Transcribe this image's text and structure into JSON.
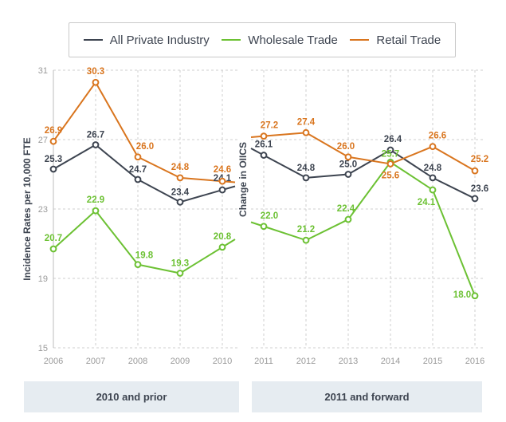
{
  "legend": [
    {
      "label": "All Private Industry",
      "color": "#3d4450"
    },
    {
      "label": "Wholesale Trade",
      "color": "#6cc133"
    },
    {
      "label": "Retail Trade",
      "color": "#d9751e"
    }
  ],
  "footer": {
    "left_label": "2010 and prior",
    "right_label": "2011 and forward"
  },
  "chart_data": {
    "type": "line",
    "ylabel_left": "Incidence Rates per 10,000 FTE",
    "ylabel_right": "Change in OIICS",
    "ylim": [
      15,
      31
    ],
    "yticks": [
      15,
      19,
      23,
      27,
      31
    ],
    "grid": true,
    "legend_placement": "top",
    "panels": [
      {
        "name": "2010 and prior",
        "x": [
          "2006",
          "2007",
          "2008",
          "2009",
          "2010"
        ],
        "series": [
          {
            "name": "All Private Industry",
            "values": [
              25.3,
              26.7,
              24.7,
              23.4,
              24.1
            ]
          },
          {
            "name": "Wholesale Trade",
            "values": [
              20.7,
              22.9,
              19.8,
              19.3,
              20.8
            ]
          },
          {
            "name": "Retail Trade",
            "values": [
              26.9,
              30.3,
              26.0,
              24.8,
              24.6
            ]
          }
        ]
      },
      {
        "name": "2011 and forward",
        "x": [
          "2011",
          "2012",
          "2013",
          "2014",
          "2015",
          "2016"
        ],
        "series": [
          {
            "name": "All Private Industry",
            "values": [
              26.1,
              24.8,
              25.0,
              26.4,
              24.8,
              23.6
            ]
          },
          {
            "name": "Wholesale Trade",
            "values": [
              22.0,
              21.2,
              22.4,
              25.7,
              24.1,
              18.0
            ]
          },
          {
            "name": "Retail Trade",
            "values": [
              27.2,
              27.4,
              26.0,
              25.6,
              26.6,
              25.2
            ]
          }
        ]
      }
    ]
  }
}
